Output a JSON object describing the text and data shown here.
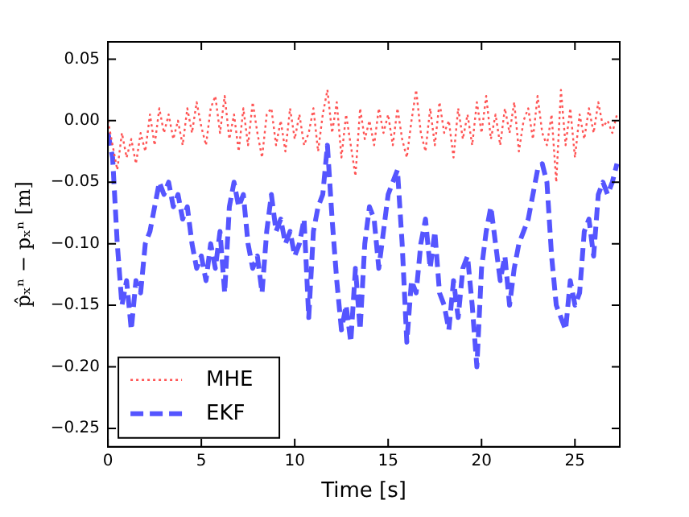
{
  "chart_data": {
    "type": "line",
    "xlabel": "Time [s]",
    "ylabel": "p̂ₓⁿ − pₓⁿ [m]",
    "x": [
      0,
      0.25,
      0.5,
      0.75,
      1,
      1.25,
      1.5,
      1.75,
      2,
      2.25,
      2.5,
      2.75,
      3,
      3.25,
      3.5,
      3.75,
      4,
      4.25,
      4.5,
      4.75,
      5,
      5.25,
      5.5,
      5.75,
      6,
      6.25,
      6.5,
      6.75,
      7,
      7.25,
      7.5,
      7.75,
      8,
      8.25,
      8.5,
      8.75,
      9,
      9.25,
      9.5,
      9.75,
      10,
      10.25,
      10.5,
      10.75,
      11,
      11.25,
      11.5,
      11.75,
      12,
      12.25,
      12.5,
      12.75,
      13,
      13.25,
      13.5,
      13.75,
      14,
      14.25,
      14.5,
      14.75,
      15,
      15.25,
      15.5,
      15.75,
      16,
      16.25,
      16.5,
      16.75,
      17,
      17.25,
      17.5,
      17.75,
      18,
      18.25,
      18.5,
      18.75,
      19,
      19.25,
      19.5,
      19.75,
      20,
      20.25,
      20.5,
      20.75,
      21,
      21.25,
      21.5,
      21.75,
      22,
      22.25,
      22.5,
      22.75,
      23,
      23.25,
      23.5,
      23.75,
      24,
      24.25,
      24.5,
      24.75,
      25,
      25.25,
      25.5,
      25.75,
      26,
      26.25,
      26.5,
      26.75,
      27,
      27.25
    ],
    "series": [
      {
        "name": "MHE",
        "color": "#ff5555",
        "line_style": "dotted",
        "values": [
          0,
          -0.02,
          -0.04,
          -0.01,
          -0.03,
          -0.015,
          -0.035,
          -0.01,
          -0.025,
          0.005,
          -0.02,
          0.01,
          -0.01,
          0.005,
          -0.015,
          0,
          -0.02,
          0.01,
          -0.01,
          0.015,
          -0.005,
          -0.02,
          0.01,
          0.02,
          -0.01,
          0.02,
          -0.015,
          0.005,
          -0.025,
          0.01,
          -0.02,
          0.015,
          -0.01,
          -0.03,
          0.005,
          0.01,
          -0.02,
          0,
          -0.025,
          0.01,
          -0.015,
          0.005,
          -0.02,
          -0.01,
          0.01,
          -0.025,
          0.005,
          0.025,
          -0.01,
          0.015,
          -0.03,
          0.005,
          -0.02,
          -0.045,
          0.01,
          -0.015,
          0,
          -0.02,
          0.01,
          -0.01,
          0.005,
          -0.02,
          0.01,
          -0.015,
          -0.03,
          0,
          0.025,
          -0.01,
          -0.025,
          0.01,
          -0.02,
          0.015,
          -0.01,
          0,
          -0.03,
          0.01,
          -0.015,
          0.005,
          -0.02,
          0.015,
          -0.01,
          0.02,
          -0.015,
          0.005,
          -0.02,
          0.01,
          -0.01,
          0.015,
          -0.025,
          0,
          0.01,
          -0.015,
          0.02,
          -0.01,
          -0.02,
          0.005,
          -0.05,
          0.025,
          -0.02,
          0.01,
          -0.03,
          0.005,
          -0.015,
          0.01,
          -0.01,
          0.015,
          -0.005,
          0,
          -0.01,
          0.005
        ]
      },
      {
        "name": "EKF",
        "color": "#5555ff",
        "line_style": "dashed",
        "values": [
          -0.01,
          -0.03,
          -0.1,
          -0.15,
          -0.13,
          -0.17,
          -0.13,
          -0.14,
          -0.1,
          -0.09,
          -0.07,
          -0.05,
          -0.06,
          -0.05,
          -0.07,
          -0.06,
          -0.08,
          -0.07,
          -0.1,
          -0.12,
          -0.11,
          -0.13,
          -0.1,
          -0.12,
          -0.09,
          -0.14,
          -0.07,
          -0.05,
          -0.07,
          -0.06,
          -0.1,
          -0.12,
          -0.11,
          -0.14,
          -0.09,
          -0.06,
          -0.09,
          -0.08,
          -0.1,
          -0.09,
          -0.11,
          -0.1,
          -0.08,
          -0.16,
          -0.09,
          -0.07,
          -0.06,
          -0.02,
          -0.08,
          -0.13,
          -0.17,
          -0.15,
          -0.18,
          -0.12,
          -0.17,
          -0.1,
          -0.07,
          -0.08,
          -0.12,
          -0.09,
          -0.06,
          -0.05,
          -0.04,
          -0.1,
          -0.18,
          -0.13,
          -0.14,
          -0.1,
          -0.08,
          -0.12,
          -0.09,
          -0.14,
          -0.15,
          -0.17,
          -0.13,
          -0.16,
          -0.12,
          -0.11,
          -0.15,
          -0.2,
          -0.12,
          -0.09,
          -0.07,
          -0.1,
          -0.13,
          -0.11,
          -0.15,
          -0.12,
          -0.1,
          -0.09,
          -0.08,
          -0.06,
          -0.04,
          -0.035,
          -0.05,
          -0.11,
          -0.15,
          -0.16,
          -0.17,
          -0.13,
          -0.15,
          -0.14,
          -0.09,
          -0.08,
          -0.11,
          -0.06,
          -0.05,
          -0.06,
          -0.05,
          -0.035
        ]
      }
    ],
    "xlim": [
      0,
      27.4
    ],
    "xticks": [
      0,
      5,
      10,
      15,
      20,
      25
    ],
    "ylim": [
      -0.265,
      0.064
    ],
    "yticks": [
      {
        "value": -0.25,
        "label": "−0.25"
      },
      {
        "value": -0.2,
        "label": "−0.20"
      },
      {
        "value": -0.15,
        "label": "−0.15"
      },
      {
        "value": -0.1,
        "label": "−0.10"
      },
      {
        "value": -0.05,
        "label": "−0.05"
      },
      {
        "value": 0,
        "label": "0.00"
      },
      {
        "value": 0.05,
        "label": "0.05"
      }
    ],
    "grid": false,
    "legend": "bottom left",
    "marker": "none"
  }
}
